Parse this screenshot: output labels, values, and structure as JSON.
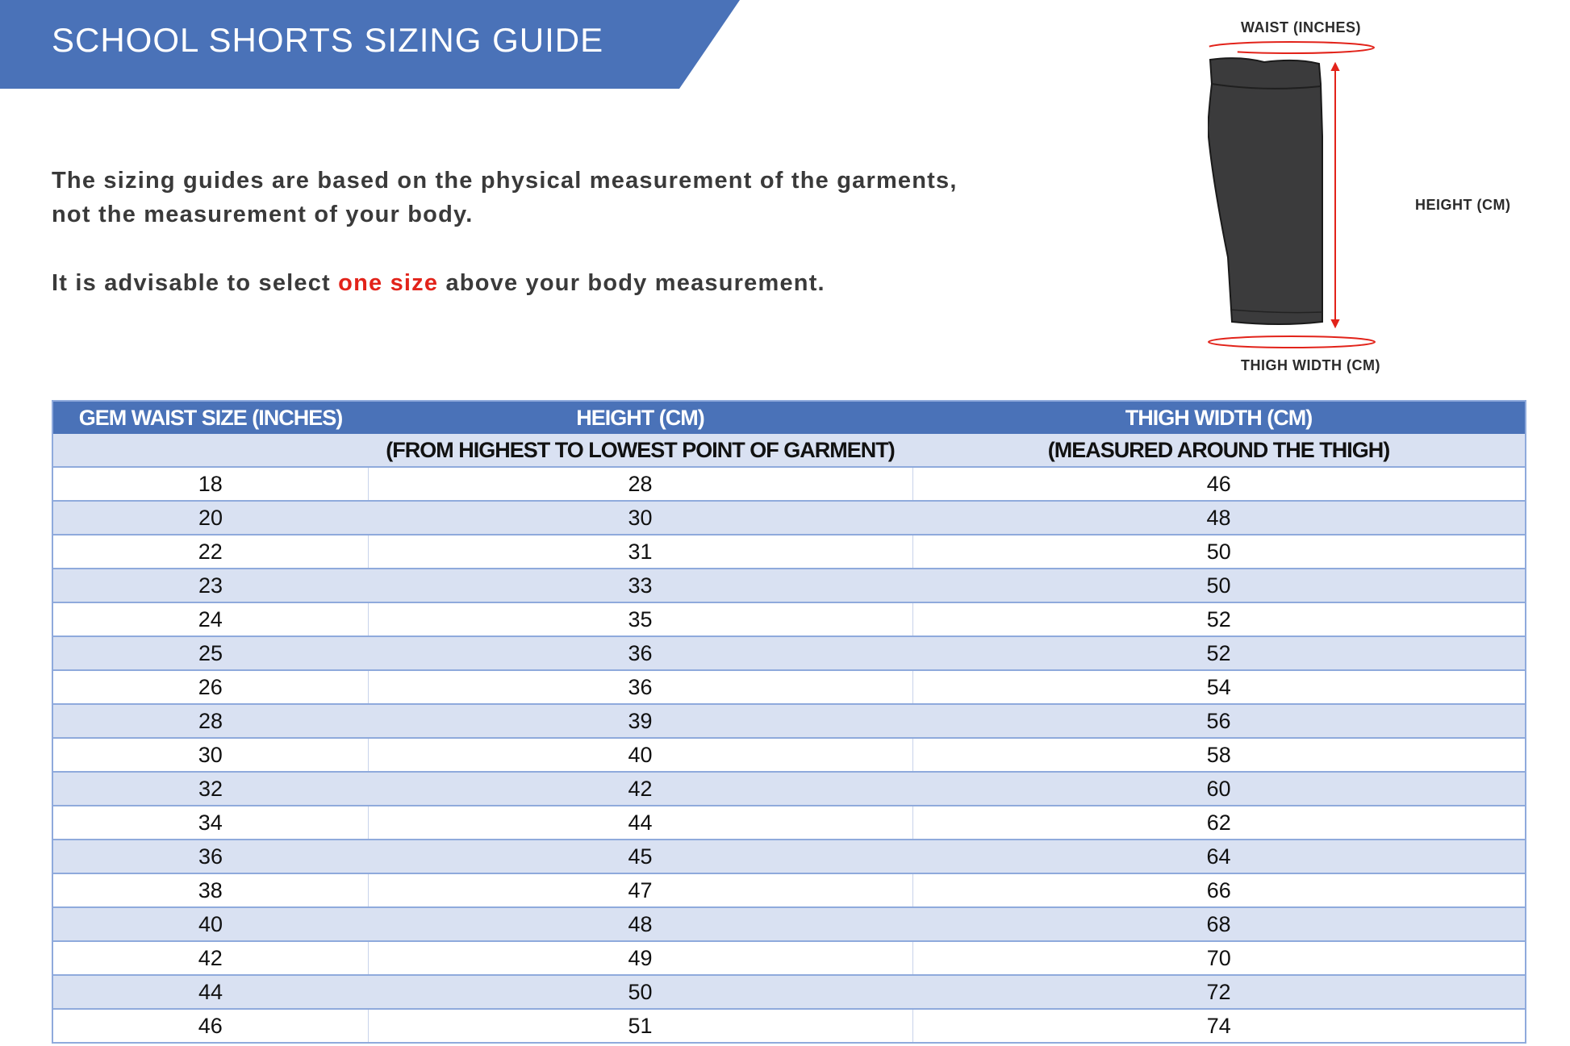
{
  "title": "SCHOOL SHORTS SIZING GUIDE",
  "intro": {
    "line1": "The sizing guides are based on the physical measurement of the garments,",
    "line2": "not the measurement of your body.",
    "advice_pre": "It is advisable to select ",
    "advice_highlight": "one size",
    "advice_post": " above your body measurement."
  },
  "diagram": {
    "waist_label": "WAIST (INCHES)",
    "height_label": "HEIGHT (CM)",
    "thigh_label": "THIGH WIDTH (CM)"
  },
  "table": {
    "headers": [
      "GEM WAIST SIZE (INCHES)",
      "HEIGHT (CM)",
      "THIGH WIDTH (CM)"
    ],
    "subheaders": [
      "",
      "(FROM HIGHEST TO LOWEST POINT OF GARMENT)",
      "(MEASURED AROUND THE THIGH)"
    ],
    "rows": [
      [
        "18",
        "28",
        "46"
      ],
      [
        "20",
        "30",
        "48"
      ],
      [
        "22",
        "31",
        "50"
      ],
      [
        "23",
        "33",
        "50"
      ],
      [
        "24",
        "35",
        "52"
      ],
      [
        "25",
        "36",
        "52"
      ],
      [
        "26",
        "36",
        "54"
      ],
      [
        "28",
        "39",
        "56"
      ],
      [
        "30",
        "40",
        "58"
      ],
      [
        "32",
        "42",
        "60"
      ],
      [
        "34",
        "44",
        "62"
      ],
      [
        "36",
        "45",
        "64"
      ],
      [
        "38",
        "47",
        "66"
      ],
      [
        "40",
        "48",
        "68"
      ],
      [
        "42",
        "49",
        "70"
      ],
      [
        "44",
        "50",
        "72"
      ],
      [
        "46",
        "51",
        "74"
      ]
    ]
  },
  "colors": {
    "header": "#4a72b8",
    "alt_row": "#d9e1f2",
    "highlight": "#e2231a",
    "border": "#8faadc"
  }
}
